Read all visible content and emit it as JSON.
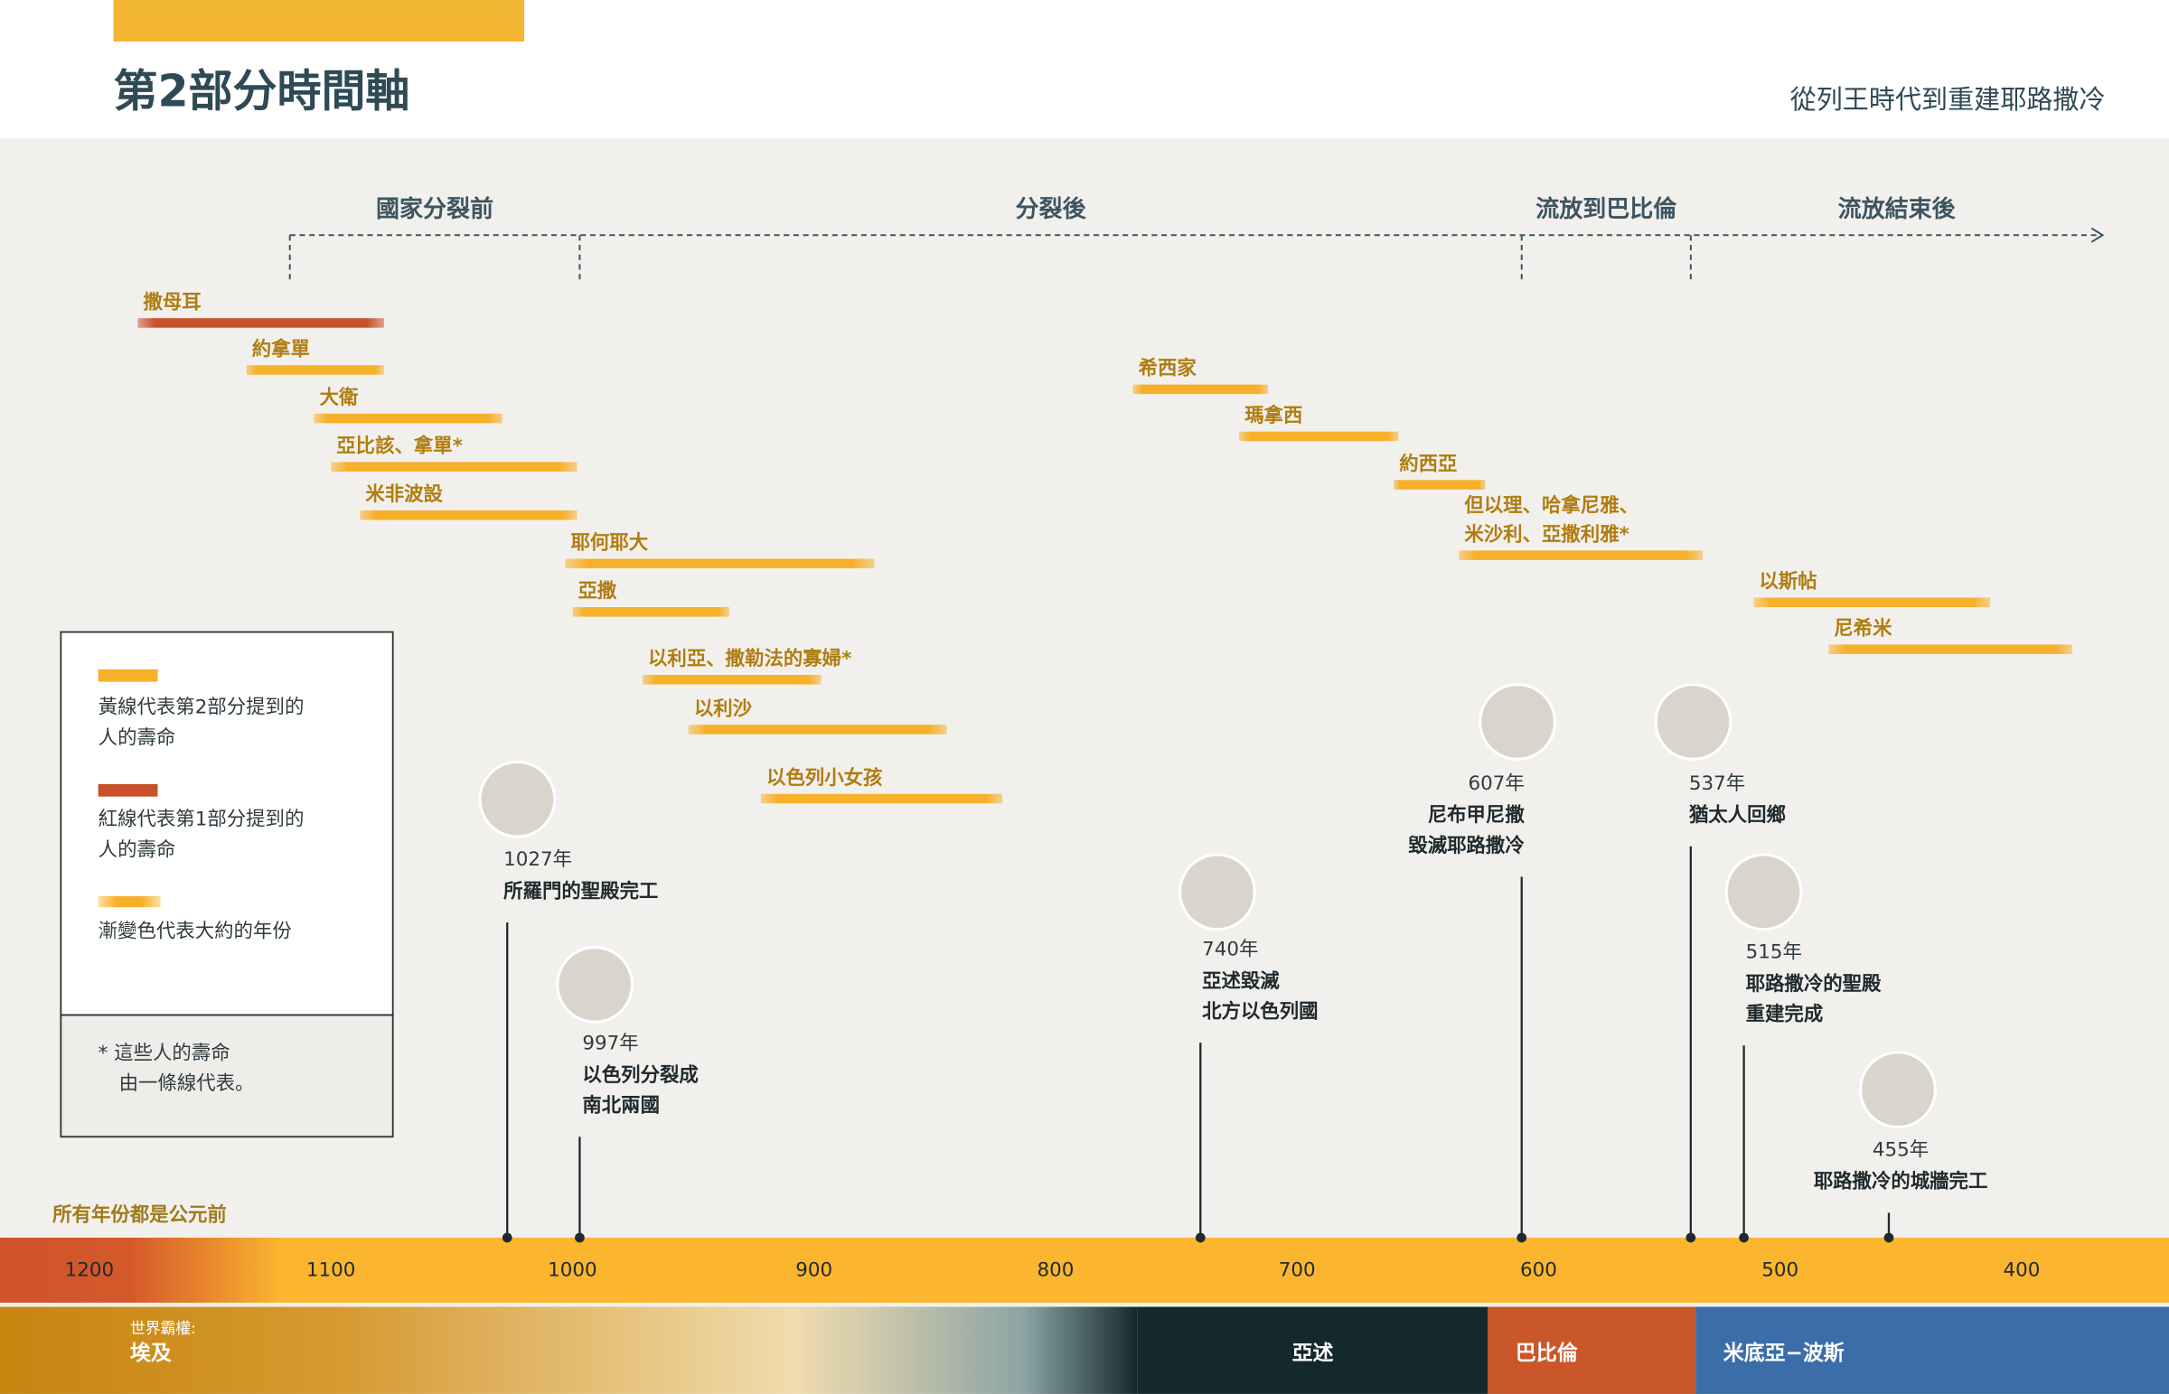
{
  "header": {
    "title": "第2部分時間軸",
    "subtitle": "從列王時代到重建耶路撒冷"
  },
  "chart_data": {
    "type": "timeline",
    "note": "所有年份都是公元前",
    "xlim": [
      1237,
      339
    ],
    "xticks": [
      1200,
      1100,
      1000,
      900,
      800,
      700,
      600,
      500,
      400
    ],
    "eras": [
      {
        "name": "國家分裂前",
        "start": 1117
      },
      {
        "name": "分裂後",
        "start": 997
      },
      {
        "name": "流放到巴比倫",
        "start": 607
      },
      {
        "name": "流放結束後",
        "start": 537
      }
    ],
    "people": [
      {
        "lines": [
          "撒母耳"
        ],
        "start": 1180,
        "end": 1078,
        "color": "#c9512a"
      },
      {
        "lines": [
          "約拿單"
        ],
        "start": 1135,
        "end": 1078,
        "color": "#f6b02a"
      },
      {
        "lines": [
          "大衛"
        ],
        "start": 1107,
        "end": 1029,
        "color": "#f6b02a"
      },
      {
        "lines": [
          "亞比該、拿單*"
        ],
        "start": 1100,
        "end": 998,
        "color": "#f6b02a"
      },
      {
        "lines": [
          "米非波設"
        ],
        "start": 1088,
        "end": 998,
        "color": "#f6b02a"
      },
      {
        "lines": [
          "耶何耶大"
        ],
        "start": 1003,
        "end": 875,
        "color": "#f6b02a"
      },
      {
        "lines": [
          "亞撒"
        ],
        "start": 1000,
        "end": 935,
        "color": "#f6b02a"
      },
      {
        "lines": [
          "以利亞、撒勒法的寡婦*"
        ],
        "start": 971,
        "end": 897,
        "color": "#f6b02a"
      },
      {
        "lines": [
          "以利沙"
        ],
        "start": 952,
        "end": 845,
        "color": "#f6b02a"
      },
      {
        "lines": [
          "以色列小女孩"
        ],
        "start": 922,
        "end": 822,
        "color": "#f6b02a"
      },
      {
        "lines": [
          "希西家"
        ],
        "start": 768,
        "end": 712,
        "color": "#f6b02a"
      },
      {
        "lines": [
          "瑪拿西"
        ],
        "start": 724,
        "end": 658,
        "color": "#f6b02a"
      },
      {
        "lines": [
          "約西亞"
        ],
        "start": 660,
        "end": 622,
        "color": "#f6b02a"
      },
      {
        "lines": [
          "但以理、哈拿尼雅、",
          "米沙利、亞撒利雅*"
        ],
        "start": 633,
        "end": 532,
        "color": "#f6b02a"
      },
      {
        "lines": [
          "以斯帖"
        ],
        "start": 511,
        "end": 413,
        "color": "#f6b02a"
      },
      {
        "lines": [
          "尼希米"
        ],
        "start": 480,
        "end": 379,
        "color": "#f6b02a"
      }
    ],
    "events": [
      {
        "year": {
          "value": 1027,
          "label": "1027年"
        },
        "lines": [
          "所羅門的聖殿完工"
        ]
      },
      {
        "year": {
          "value": 997,
          "label": "997年"
        },
        "lines": [
          "以色列分裂成",
          "南北兩國"
        ]
      },
      {
        "year": {
          "value": 740,
          "label": "740年"
        },
        "lines": [
          "亞述毀滅",
          "北方以色列國"
        ]
      },
      {
        "year": {
          "value": 607,
          "label": "607年"
        },
        "lines": [
          "尼布甲尼撒",
          "毀滅耶路撒冷"
        ]
      },
      {
        "year": {
          "value": 537,
          "label": "537年"
        },
        "lines": [
          "猶太人回鄉"
        ]
      },
      {
        "year": {
          "value": 515,
          "label": "515年"
        },
        "lines": [
          "耶路撒冷的聖殿",
          "重建完成"
        ]
      },
      {
        "year": {
          "value": 455,
          "label": "455年"
        },
        "lines": [
          "耶路撒冷的城牆完工"
        ]
      }
    ],
    "powers": {
      "label": "世界霸權:",
      "items": [
        {
          "name": "埃及"
        },
        {
          "name": "亞述",
          "start": 766
        },
        {
          "name": "巴比倫",
          "start": 621
        },
        {
          "name": "米底亞−波斯",
          "start": 535
        }
      ]
    }
  },
  "legend": {
    "items": [
      {
        "lines": [
          "黃線代表第2部分提到的",
          "人的壽命"
        ]
      },
      {
        "lines": [
          "紅線代表第1部分提到的",
          "人的壽命"
        ]
      },
      {
        "lines": [
          "漸變色代表大約的年份"
        ]
      }
    ],
    "footnote": [
      "*  這些人的壽命",
      "由一條線代表。"
    ]
  }
}
